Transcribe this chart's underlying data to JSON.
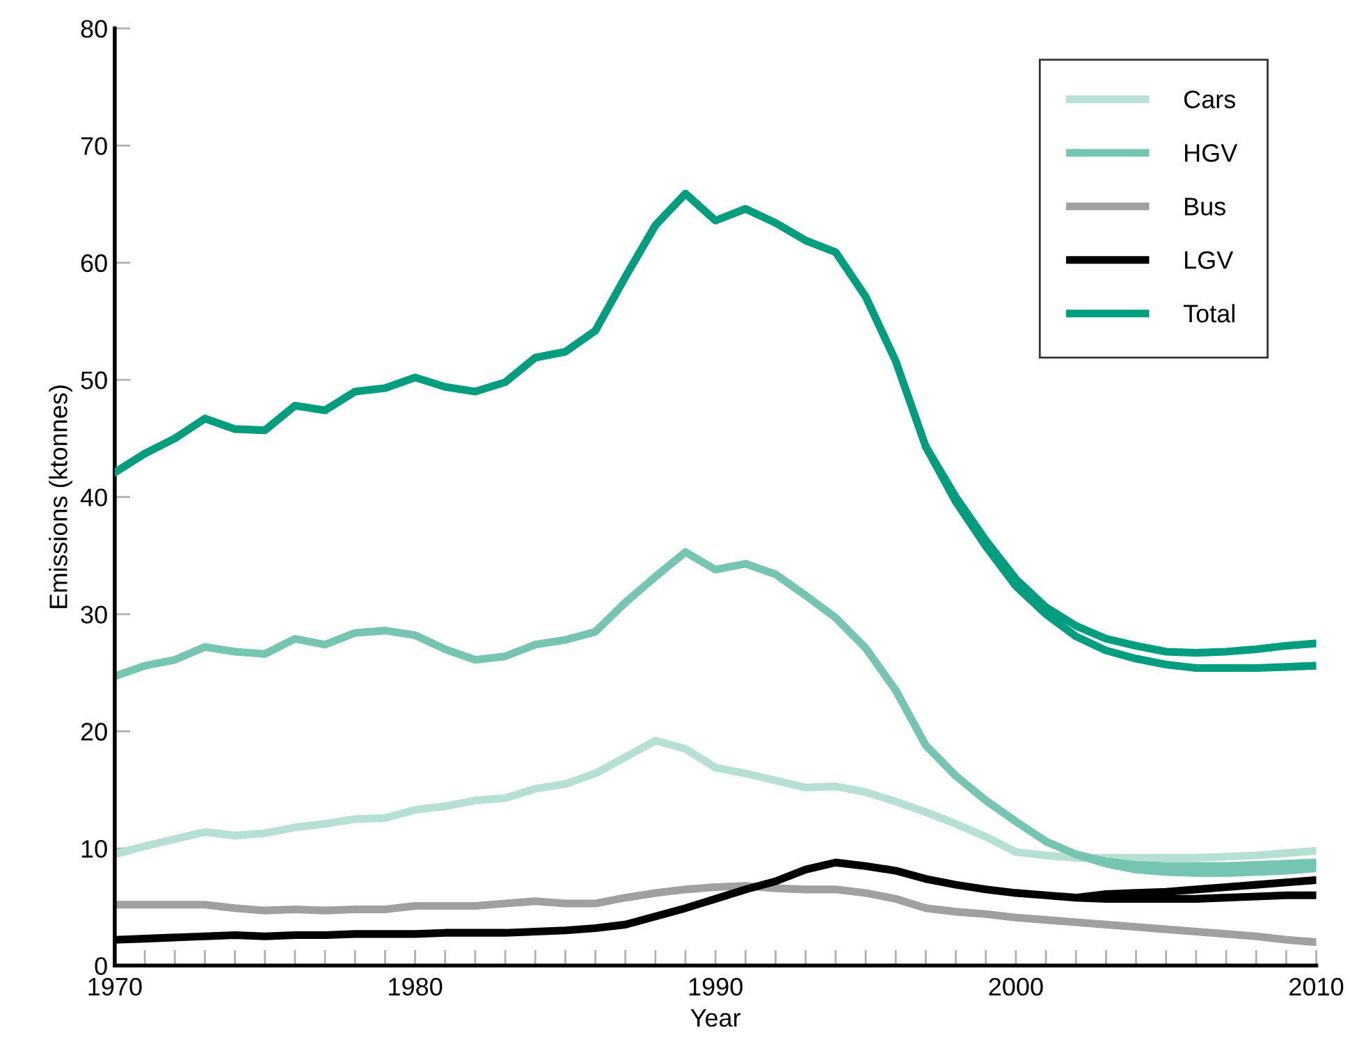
{
  "chart_data": {
    "type": "line",
    "xlabel": "Year",
    "ylabel": "Emissions (ktonnes)",
    "x": [
      1970,
      1971,
      1972,
      1973,
      1974,
      1975,
      1976,
      1977,
      1978,
      1979,
      1980,
      1981,
      1982,
      1983,
      1984,
      1985,
      1986,
      1987,
      1988,
      1989,
      1990,
      1991,
      1992,
      1993,
      1994,
      1995,
      1996,
      1997,
      1998,
      1999,
      2000,
      2001,
      2002,
      2003,
      2004,
      2005,
      2006,
      2007,
      2008,
      2009,
      2010
    ],
    "series": [
      {
        "name": "Cars",
        "color": "#b7e0d4",
        "values": [
          9.5,
          10.2,
          10.8,
          11.4,
          11.1,
          11.3,
          11.8,
          12.1,
          12.5,
          12.6,
          13.3,
          13.6,
          14.1,
          14.3,
          15.1,
          15.5,
          16.4,
          17.8,
          19.2,
          18.5,
          16.9,
          16.4,
          15.8,
          15.2,
          15.3,
          14.8,
          14.0,
          13.1,
          12.1,
          11.0,
          9.7,
          9.4,
          9.2,
          9.2,
          9.2,
          9.2,
          9.2,
          9.3,
          9.4,
          9.6,
          9.8
        ]
      },
      {
        "name": "HGV",
        "color": "#76c4b2",
        "values": [
          24.7,
          25.6,
          26.1,
          27.2,
          26.8,
          26.6,
          27.9,
          27.4,
          28.4,
          28.6,
          28.2,
          27.0,
          26.1,
          26.4,
          27.4,
          27.8,
          28.5,
          31.0,
          33.2,
          35.3,
          33.8,
          34.3,
          33.4,
          31.6,
          29.7,
          27.1,
          23.5,
          18.8,
          16.2,
          14.1,
          12.3,
          10.6,
          9.5,
          8.9,
          8.6,
          8.5,
          8.5,
          8.5,
          8.6,
          8.7,
          8.8
        ]
      },
      {
        "color": "#76c4b2",
        "x": [
          2002,
          2003,
          2004,
          2005,
          2006,
          2007,
          2008,
          2009,
          2010
        ],
        "values": [
          9.5,
          8.7,
          8.2,
          8.0,
          7.9,
          7.9,
          8.0,
          8.1,
          8.3
        ]
      },
      {
        "name": "Bus",
        "color": "#a0a0a0",
        "values": [
          5.2,
          5.2,
          5.2,
          5.2,
          4.9,
          4.7,
          4.8,
          4.7,
          4.8,
          4.8,
          5.1,
          5.1,
          5.1,
          5.3,
          5.5,
          5.3,
          5.3,
          5.8,
          6.2,
          6.5,
          6.7,
          6.8,
          6.6,
          6.5,
          6.5,
          6.2,
          5.7,
          4.9,
          4.6,
          4.4,
          4.1,
          3.9,
          3.7,
          3.5,
          3.3,
          3.1,
          2.9,
          2.7,
          2.5,
          2.2,
          2.0
        ]
      },
      {
        "name": "LGV",
        "color": "#000000",
        "values": [
          2.2,
          2.3,
          2.4,
          2.5,
          2.6,
          2.5,
          2.6,
          2.6,
          2.7,
          2.7,
          2.7,
          2.8,
          2.8,
          2.8,
          2.9,
          3.0,
          3.2,
          3.5,
          4.2,
          4.9,
          5.7,
          6.5,
          7.2,
          8.2,
          8.8,
          8.5,
          8.1,
          7.4,
          6.9,
          6.5,
          6.2,
          6.0,
          5.8,
          5.7,
          5.7,
          5.7,
          5.7,
          5.8,
          5.9,
          6.0,
          6.0
        ]
      },
      {
        "color": "#000000",
        "x": [
          2002,
          2003,
          2004,
          2005,
          2006,
          2007,
          2008,
          2009,
          2010
        ],
        "values": [
          5.8,
          6.1,
          6.2,
          6.3,
          6.5,
          6.7,
          6.9,
          7.1,
          7.3
        ]
      },
      {
        "name": "Total",
        "color": "#009e7e",
        "values": [
          42.1,
          43.7,
          45.0,
          46.7,
          45.8,
          45.7,
          47.8,
          47.4,
          49.0,
          49.3,
          50.2,
          49.4,
          49.0,
          49.8,
          51.9,
          52.4,
          54.2,
          58.8,
          63.2,
          65.9,
          63.6,
          64.6,
          63.4,
          61.9,
          60.9,
          57.1,
          51.6,
          44.3,
          40.0,
          36.3,
          33.0,
          30.6,
          29.0,
          27.9,
          27.3,
          26.8,
          26.7,
          26.8,
          27.0,
          27.3,
          27.5
        ]
      },
      {
        "color": "#009e7e",
        "x": [
          1997,
          1998,
          1999,
          2000,
          2001,
          2002,
          2003,
          2004,
          2005,
          2006,
          2007,
          2008,
          2009,
          2010
        ],
        "values": [
          44.3,
          39.6,
          35.8,
          32.4,
          30.0,
          28.1,
          26.9,
          26.2,
          25.7,
          25.4,
          25.4,
          25.4,
          25.5,
          25.6
        ]
      }
    ],
    "xlim": [
      1970,
      2010
    ],
    "xticks": [
      1970,
      {
        "value": 1971,
        "label": null
      },
      {
        "value": 1972,
        "label": null
      },
      {
        "value": 1973,
        "label": null
      },
      {
        "value": 1974,
        "label": null
      },
      {
        "value": 1975,
        "label": null
      },
      {
        "value": 1976,
        "label": null
      },
      {
        "value": 1977,
        "label": null
      },
      {
        "value": 1978,
        "label": null
      },
      {
        "value": 1979,
        "label": null
      },
      1980,
      {
        "value": 1981,
        "label": null
      },
      {
        "value": 1982,
        "label": null
      },
      {
        "value": 1983,
        "label": null
      },
      {
        "value": 1984,
        "label": null
      },
      {
        "value": 1985,
        "label": null
      },
      {
        "value": 1986,
        "label": null
      },
      {
        "value": 1987,
        "label": null
      },
      {
        "value": 1988,
        "label": null
      },
      {
        "value": 1989,
        "label": null
      },
      1990,
      {
        "value": 1991,
        "label": null
      },
      {
        "value": 1992,
        "label": null
      },
      {
        "value": 1993,
        "label": null
      },
      {
        "value": 1994,
        "label": null
      },
      {
        "value": 1995,
        "label": null
      },
      {
        "value": 1996,
        "label": null
      },
      {
        "value": 1997,
        "label": null
      },
      {
        "value": 1998,
        "label": null
      },
      {
        "value": 1999,
        "label": null
      },
      2000,
      {
        "value": 2001,
        "label": null
      },
      {
        "value": 2002,
        "label": null
      },
      {
        "value": 2003,
        "label": null
      },
      {
        "value": 2004,
        "label": null
      },
      {
        "value": 2005,
        "label": null
      },
      {
        "value": 2006,
        "label": null
      },
      {
        "value": 2007,
        "label": null
      },
      {
        "value": 2008,
        "label": null
      },
      {
        "value": 2009,
        "label": null
      },
      2010
    ],
    "ylim": [
      0,
      80
    ],
    "yticks": [
      0,
      10,
      20,
      30,
      40,
      50,
      60,
      70,
      80
    ],
    "grid": false,
    "legend": "top right",
    "marker": "none",
    "line_style": "solid"
  }
}
